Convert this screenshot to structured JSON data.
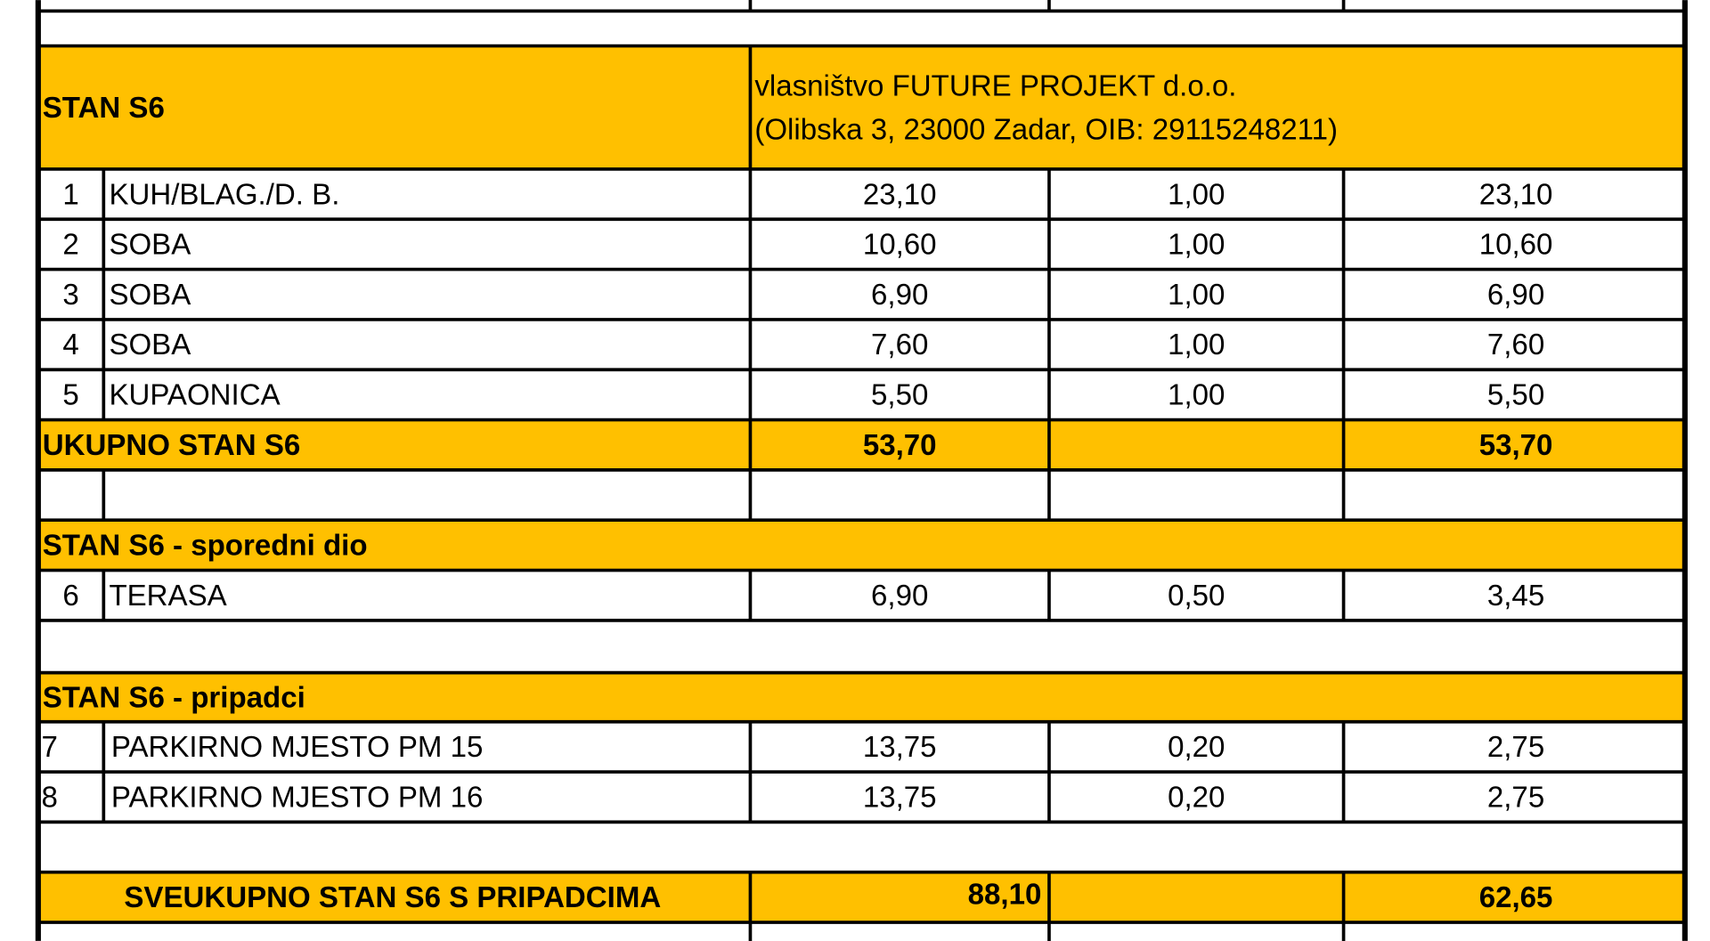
{
  "apartment": {
    "title": "STAN S6",
    "owner": [
      "vlasništvo FUTURE PROJEKT d.o.o.",
      "(Olibska 3, 23000 Zadar, OIB: 29115248211)"
    ]
  },
  "rooms": [
    {
      "no": "1",
      "name": "KUH/BLAG./D. B.",
      "area": "23,10",
      "coef": "1,00",
      "net": "23,10"
    },
    {
      "no": "2",
      "name": "SOBA",
      "area": "10,60",
      "coef": "1,00",
      "net": "10,60"
    },
    {
      "no": "3",
      "name": "SOBA",
      "area": "6,90",
      "coef": "1,00",
      "net": "6,90"
    },
    {
      "no": "4",
      "name": "SOBA",
      "area": "7,60",
      "coef": "1,00",
      "net": "7,60"
    },
    {
      "no": "5",
      "name": "KUPAONICA",
      "area": "5,50",
      "coef": "1,00",
      "net": "5,50"
    }
  ],
  "subtotal": {
    "label": "UKUPNO STAN S6",
    "area": "53,70",
    "net": "53,70"
  },
  "secondary": {
    "title": "STAN S6 - sporedni dio",
    "rows": [
      {
        "no": "6",
        "name": "TERASA",
        "area": "6,90",
        "coef": "0,50",
        "net": "3,45"
      }
    ]
  },
  "appurtenances": {
    "title": "STAN S6 - pripadci",
    "rows": [
      {
        "no": "7",
        "name": "PARKIRNO MJESTO PM 15",
        "area": "13,75",
        "coef": "0,20",
        "net": "2,75"
      },
      {
        "no": "8",
        "name": "PARKIRNO MJESTO PM 16",
        "area": "13,75",
        "coef": "0,20",
        "net": "2,75"
      }
    ]
  },
  "total": {
    "label": "SVEUKUPNO STAN S6 S PRIPADCIMA",
    "area": "88,10",
    "net": "62,65"
  }
}
